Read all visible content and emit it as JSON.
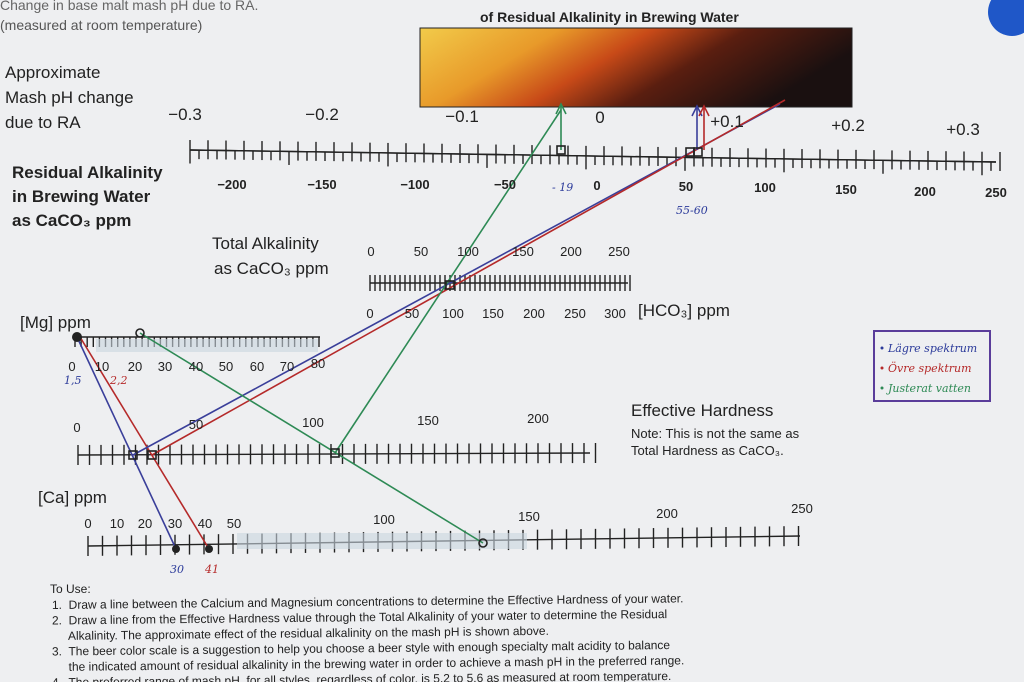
{
  "header": {
    "line1": "Change in base malt mash pH due to RA.",
    "line2": "(measured at room temperature)",
    "color_title": "of Residual Alkalinity in Brewing Water"
  },
  "ph_scale": {
    "label": [
      "Approximate",
      "Mash pH change",
      "due to RA"
    ],
    "ticks": [
      "−0.3",
      "−0.2",
      "−0.1",
      "0",
      "+0.1",
      "+0.2",
      "+0.3"
    ]
  },
  "ra_scale": {
    "label": [
      "Residual Alkalinity",
      "in Brewing Water",
      "as CaCO₃ ppm"
    ],
    "ticks": [
      "−200",
      "−150",
      "−100",
      "−50",
      "0",
      "50",
      "100",
      "150",
      "200",
      "250"
    ]
  },
  "ta_scale": {
    "label": [
      "Total Alkalinity",
      "as CaCO₃ ppm"
    ],
    "ticks": [
      "0",
      "50",
      "100",
      "150",
      "200",
      "250"
    ]
  },
  "hco3_scale": {
    "label": "[HCO₃] ppm",
    "ticks": [
      "0",
      "50",
      "100",
      "150",
      "200",
      "250",
      "300"
    ]
  },
  "mg_scale": {
    "label": "[Mg] ppm",
    "ticks": [
      "0",
      "10",
      "20",
      "30",
      "40",
      "50",
      "60",
      "70",
      "80"
    ]
  },
  "eh_scale": {
    "label": "Effective Hardness",
    "note": [
      "Note: This is not the same as",
      "Total Hardness as CaCO₃."
    ],
    "ticks": [
      "0",
      "50",
      "100",
      "150",
      "200"
    ]
  },
  "ca_scale": {
    "label": "[Ca] ppm",
    "ticks": [
      "0",
      "10",
      "20",
      "30",
      "40",
      "50",
      "100",
      "150",
      "200",
      "250"
    ]
  },
  "annotations": [
    "- 19",
    "55-60",
    "1,5",
    "2,2",
    "30",
    "41"
  ],
  "legend": [
    "Lägre spektrum",
    "Övre spektrum",
    "Justerat vatten"
  ],
  "instructions": {
    "heading": "To Use:",
    "items": [
      "1.  Draw a line between the Calcium and Magnesium concentrations to determine the Effective Hardness of your water.",
      "2.  Draw a line from the Effective Hardness value through the Total Alkalinity of your water to determine the Residual",
      "     Alkalinity. The approximate effect of the residual alkalinity on the mash pH is shown above.",
      "3.  The beer color scale is a suggestion to help you choose a beer style with enough specialty malt acidity to balance",
      "     the indicated amount of residual alkalinity in the brewing water in order to achieve a mash pH in the preferred range.",
      "4.  The preferred range of mash pH, for all styles, regardless of color, is 5.2 to 5.6 as measured at room temperature."
    ]
  }
}
